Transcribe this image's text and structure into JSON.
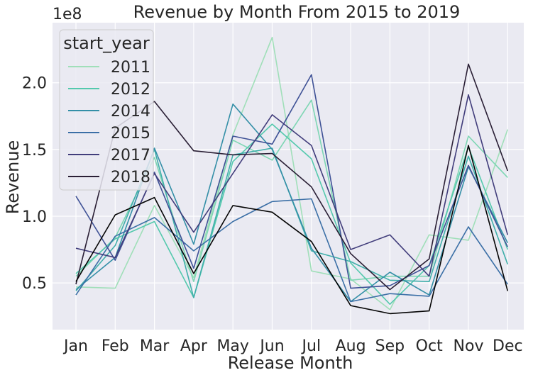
{
  "chart_data": {
    "type": "line",
    "title": "Revenue by Month From 2015 to 2019",
    "xlabel": "Release Month",
    "ylabel": "Revenue",
    "y_offset_text": "1e8",
    "categories": [
      "Jan",
      "Feb",
      "Mar",
      "Apr",
      "May",
      "Jun",
      "Jul",
      "Aug",
      "Sep",
      "Oct",
      "Nov",
      "Dec"
    ],
    "ylim": [
      0.15,
      2.45
    ],
    "yticks": [
      0.5,
      1.0,
      1.5,
      2.0
    ],
    "ytick_labels": [
      "0.5",
      "1.0",
      "1.5",
      "2.0"
    ],
    "grid": true,
    "background": "#eaeaf2",
    "legend": {
      "title": "start_year",
      "placement": "upper-left",
      "entries": [
        {
          "label": "2011",
          "color": "#a0dfb9"
        },
        {
          "label": "2012",
          "color": "#54c9ad"
        },
        {
          "label": "2014",
          "color": "#348fa7"
        },
        {
          "label": "2015",
          "color": "#3b6fa6"
        },
        {
          "label": "2017",
          "color": "#413d7b"
        },
        {
          "label": "2018",
          "color": "#2a1f35"
        }
      ]
    },
    "series": [
      {
        "color": "#a0dfb9",
        "values": [
          0.47,
          0.46,
          1.08,
          0.54,
          1.61,
          2.34,
          0.59,
          0.53,
          0.3,
          0.86,
          0.82,
          1.65
        ]
      },
      {
        "color": "#7dd6b3",
        "values": [
          0.55,
          0.84,
          1.44,
          0.51,
          1.57,
          1.42,
          1.87,
          0.52,
          0.55,
          0.55,
          1.6,
          1.29
        ]
      },
      {
        "color": "#54c9ad",
        "values": [
          0.57,
          0.83,
          0.96,
          0.39,
          1.41,
          1.69,
          1.43,
          0.65,
          0.34,
          0.63,
          1.52,
          0.75
        ]
      },
      {
        "color": "#40afaa",
        "values": [
          0.44,
          0.78,
          1.5,
          0.39,
          1.46,
          1.51,
          0.74,
          0.66,
          0.52,
          0.51,
          1.45,
          0.64
        ]
      },
      {
        "color": "#348fa7",
        "values": [
          0.45,
          0.69,
          1.51,
          0.79,
          1.84,
          1.5,
          0.76,
          0.36,
          0.58,
          0.41,
          1.37,
          0.8
        ]
      },
      {
        "color": "#3b6fa6",
        "values": [
          0.41,
          0.85,
          0.99,
          0.74,
          0.96,
          1.11,
          1.13,
          0.36,
          0.42,
          0.4,
          0.92,
          0.49
        ]
      },
      {
        "color": "#3f5296",
        "values": [
          1.15,
          0.67,
          1.33,
          0.61,
          1.6,
          1.54,
          2.06,
          0.46,
          0.48,
          0.63,
          1.38,
          0.77
        ]
      },
      {
        "color": "#413d7b",
        "values": [
          0.76,
          0.69,
          1.32,
          0.88,
          1.32,
          1.76,
          1.53,
          0.75,
          0.86,
          0.55,
          1.91,
          0.86
        ]
      },
      {
        "color": "#2a1f35",
        "values": [
          0.49,
          1.66,
          1.86,
          1.49,
          1.46,
          1.47,
          1.22,
          0.72,
          0.45,
          0.68,
          2.14,
          1.34
        ]
      },
      {
        "color": "#050505",
        "values": [
          0.51,
          1.01,
          1.14,
          0.57,
          1.08,
          1.03,
          0.81,
          0.33,
          0.27,
          0.29,
          1.53,
          0.44
        ]
      }
    ]
  }
}
